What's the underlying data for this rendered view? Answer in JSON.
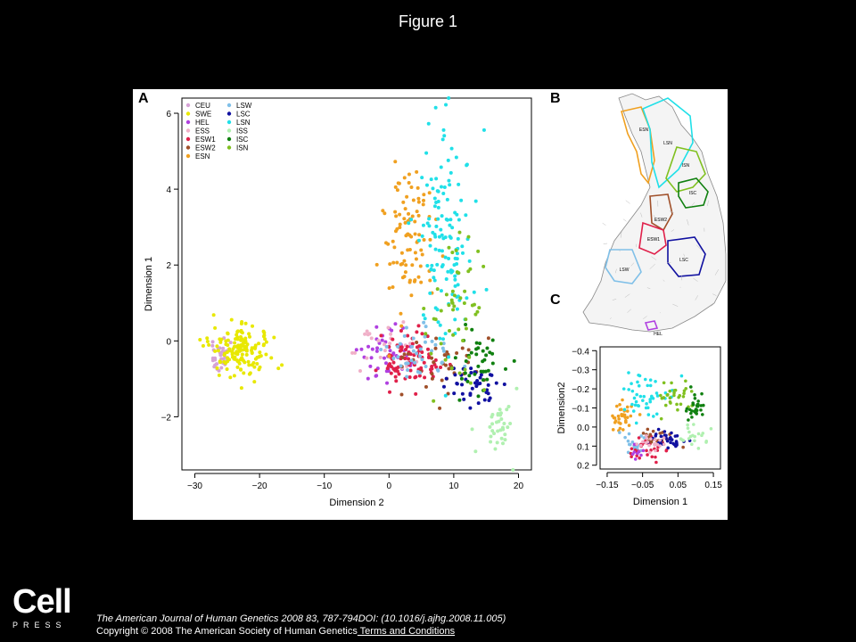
{
  "page_title": "Figure 1",
  "logo": {
    "main": "Cell",
    "sub": "PRESS"
  },
  "citation": {
    "journal_line": "The American Journal of Human Genetics 2008 83, 787-794DOI: (10.1016/j.ajhg.2008.11.005)",
    "copyright": "Copyright © 2008 The American Society of Human Genetics",
    "terms_link": " Terms and Conditions"
  },
  "panels": {
    "a": "A",
    "b": "B",
    "c": "C"
  },
  "map_labels": [
    "ESN",
    "LSN",
    "ISN",
    "ISC",
    "ESW1",
    "ESW2",
    "LSW",
    "LSC",
    "HEL"
  ],
  "chart_data": [
    {
      "type": "scatter",
      "panel": "A",
      "title": "",
      "xlabel": "Dimension 2",
      "ylabel": "Dimension 1",
      "xlim": [
        -32,
        22
      ],
      "ylim": [
        -3.4,
        6.4
      ],
      "xticks": [
        -30,
        -20,
        -10,
        0,
        10,
        20
      ],
      "yticks": [
        -2,
        0,
        2,
        4,
        6
      ],
      "xtick_labels": [
        "−30",
        "−20",
        "−10",
        "0",
        "10",
        "20"
      ],
      "ytick_labels": [
        "−2",
        "0",
        "2",
        "4",
        "6"
      ],
      "legend_position": "top-left",
      "series": [
        {
          "name": "CEU",
          "color": "#d6a3d6",
          "cx": -26,
          "cy": -0.4,
          "sx": 1.0,
          "sy": 0.18,
          "n": 35
        },
        {
          "name": "SWE",
          "color": "#e8e800",
          "cx": -23,
          "cy": -0.3,
          "sx": 2.3,
          "sy": 0.32,
          "n": 150
        },
        {
          "name": "HEL",
          "color": "#b040e0",
          "cx": -1,
          "cy": -0.3,
          "sx": 3.0,
          "sy": 0.35,
          "n": 45
        },
        {
          "name": "ESS",
          "color": "#f0b0c8",
          "cx": 0,
          "cy": -0.2,
          "sx": 3.0,
          "sy": 0.4,
          "n": 30
        },
        {
          "name": "ESW1",
          "color": "#e0204a",
          "cx": 4,
          "cy": -0.5,
          "sx": 2.5,
          "sy": 0.35,
          "n": 90
        },
        {
          "name": "ESW2",
          "color": "#a0502a",
          "cx": 8,
          "cy": -0.7,
          "sx": 3.0,
          "sy": 0.4,
          "n": 40
        },
        {
          "name": "ESN",
          "color": "#f0a020",
          "cx": 3,
          "cy": 2.9,
          "sx": 2.0,
          "sy": 1.0,
          "n": 95
        },
        {
          "name": "LSW",
          "color": "#80c0e8",
          "cx": 5,
          "cy": -0.3,
          "sx": 3.0,
          "sy": 0.4,
          "n": 40
        },
        {
          "name": "LSC",
          "color": "#1010a0",
          "cx": 13,
          "cy": -1.2,
          "sx": 2.0,
          "sy": 0.4,
          "n": 40
        },
        {
          "name": "LSN",
          "color": "#20e0e8",
          "cx": 8.5,
          "cy": 2.5,
          "sx": 2.2,
          "sy": 1.5,
          "n": 130
        },
        {
          "name": "ISS",
          "color": "#b0f0b0",
          "cx": 17,
          "cy": -2.2,
          "sx": 1.6,
          "sy": 0.35,
          "n": 35
        },
        {
          "name": "ISC",
          "color": "#108010",
          "cx": 14,
          "cy": -0.5,
          "sx": 1.6,
          "sy": 0.45,
          "n": 40
        },
        {
          "name": "ISN",
          "color": "#80c020",
          "cx": 11,
          "cy": 0.8,
          "sx": 2.2,
          "sy": 1.0,
          "n": 50
        }
      ]
    },
    {
      "type": "scatter",
      "panel": "C",
      "title": "",
      "xlabel": "Dimension 1",
      "ylabel": "Dimension2",
      "xlim": [
        -0.17,
        0.17
      ],
      "ylim": [
        -0.42,
        0.22
      ],
      "y_inverted": true,
      "xticks": [
        -0.15,
        -0.05,
        0.05,
        0.15
      ],
      "yticks": [
        -0.4,
        -0.3,
        -0.2,
        -0.1,
        0.0,
        0.1,
        0.2
      ],
      "xtick_labels": [
        "−0.15",
        "−0.05",
        "0.05",
        "0.15"
      ],
      "ytick_labels": [
        "−0.4",
        "−0.3",
        "−0.2",
        "−0.1",
        "0.0",
        "0.1",
        "0.2"
      ],
      "series": [
        {
          "name": "ESN",
          "color": "#f0a020",
          "cx": -0.11,
          "cy": -0.05,
          "sx": 0.015,
          "sy": 0.04,
          "n": 35
        },
        {
          "name": "LSN",
          "color": "#20e0e8",
          "cx": -0.05,
          "cy": -0.17,
          "sx": 0.035,
          "sy": 0.05,
          "n": 45
        },
        {
          "name": "ISN",
          "color": "#80c020",
          "cx": 0.04,
          "cy": -0.16,
          "sx": 0.03,
          "sy": 0.04,
          "n": 30
        },
        {
          "name": "ISC",
          "color": "#108010",
          "cx": 0.1,
          "cy": -0.1,
          "sx": 0.015,
          "sy": 0.04,
          "n": 30
        },
        {
          "name": "LSW",
          "color": "#80c0e8",
          "cx": -0.07,
          "cy": 0.08,
          "sx": 0.015,
          "sy": 0.03,
          "n": 20
        },
        {
          "name": "ESW1",
          "color": "#e0204a",
          "cx": -0.04,
          "cy": 0.11,
          "sx": 0.025,
          "sy": 0.03,
          "n": 35
        },
        {
          "name": "ESW2",
          "color": "#a0502a",
          "cx": -0.01,
          "cy": 0.05,
          "sx": 0.025,
          "sy": 0.03,
          "n": 20
        },
        {
          "name": "LSC",
          "color": "#1010a0",
          "cx": 0.03,
          "cy": 0.06,
          "sx": 0.025,
          "sy": 0.025,
          "n": 35
        },
        {
          "name": "ISS",
          "color": "#b0f0b0",
          "cx": 0.09,
          "cy": 0.04,
          "sx": 0.025,
          "sy": 0.03,
          "n": 20
        },
        {
          "name": "HEL",
          "color": "#b040e0",
          "cx": -0.06,
          "cy": 0.13,
          "sx": 0.01,
          "sy": 0.02,
          "n": 10
        },
        {
          "name": "ESS",
          "color": "#f0b0c8",
          "cx": -0.02,
          "cy": 0.08,
          "sx": 0.02,
          "sy": 0.02,
          "n": 20
        }
      ]
    }
  ]
}
